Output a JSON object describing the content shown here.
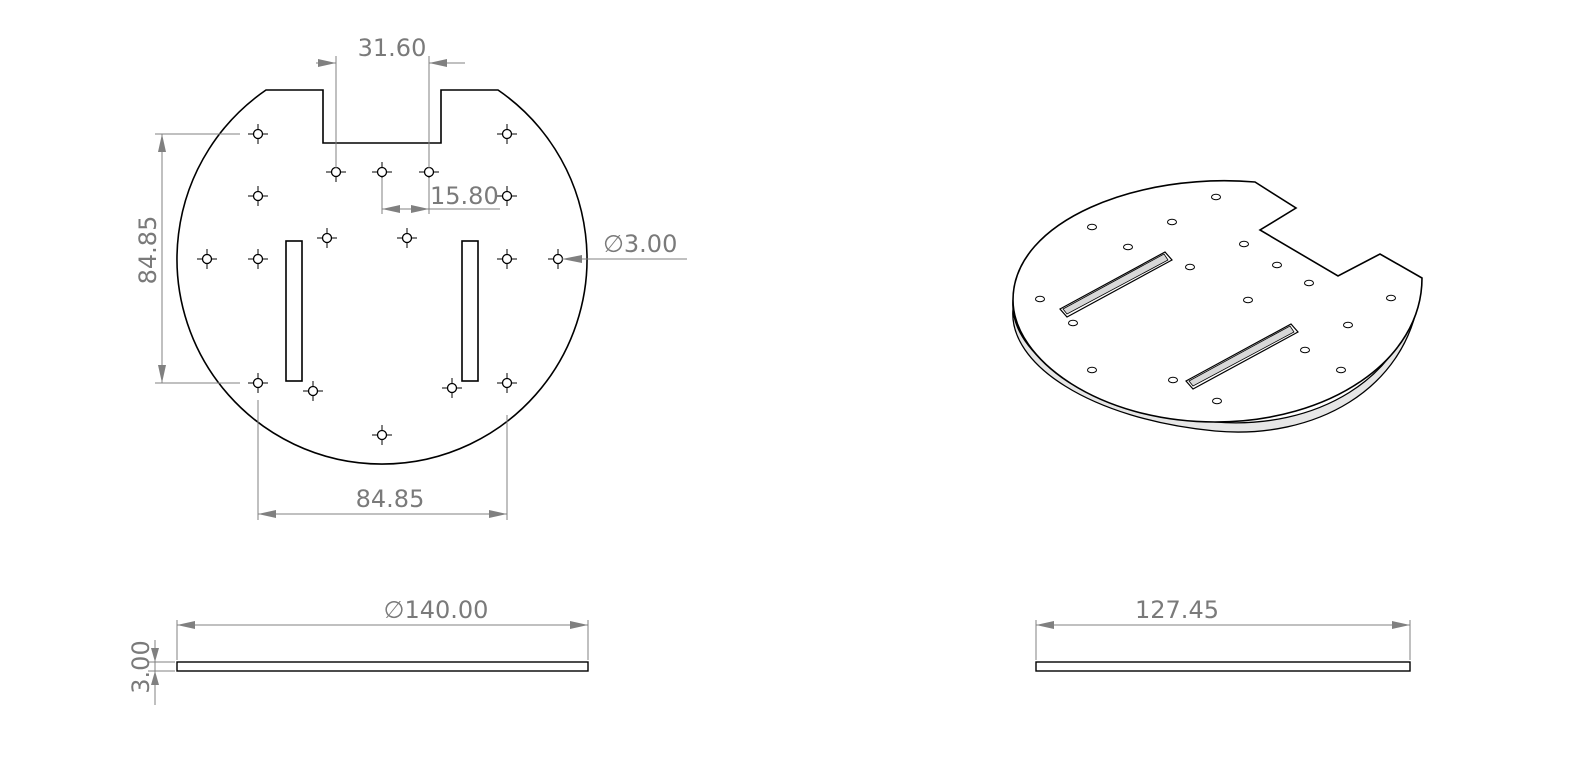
{
  "dimensions": {
    "notch_width": "31.60",
    "hole_spacing": "15.80",
    "hole_diameter": "3.00",
    "vertical_spacing": "84.85",
    "horizontal_spacing": "84.85",
    "diameter": "140.00",
    "thickness": "3.00",
    "side_width": "127.45"
  },
  "symbols": {
    "diameter": "∅"
  }
}
